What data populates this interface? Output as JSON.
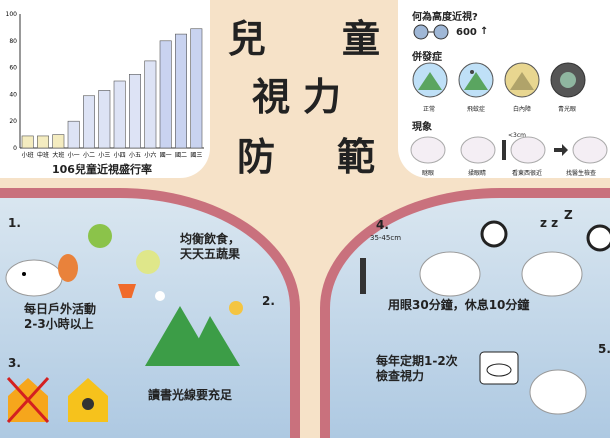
{
  "title": {
    "c1": "兒",
    "c2": "童",
    "c3": "視",
    "c4": "力",
    "c5": "防",
    "c6": "範"
  },
  "chart_data": {
    "type": "bar",
    "title": "106兒童近視盛行率",
    "categories": [
      "小班",
      "中班",
      "大班",
      "小一",
      "小二",
      "小三",
      "小四",
      "小五",
      "小六",
      "國一",
      "國二",
      "國三"
    ],
    "values": [
      9,
      9,
      10,
      20,
      39,
      43,
      50,
      55,
      65,
      80,
      85,
      89
    ],
    "yticks": [
      "0",
      "20",
      "40",
      "60",
      "80",
      "100"
    ],
    "ylim": [
      0,
      100
    ],
    "highlight_colors": [
      "#f4ecc0",
      "#dde3f5",
      "#c9d3f0"
    ]
  },
  "info": {
    "high_myopia_q": "何為高度近視?",
    "threshold": "600",
    "arrow": "↑",
    "complications": "併發症",
    "comp_items": [
      "正常",
      "飛蚊症",
      "白內障",
      "青光眼"
    ],
    "symptoms": "現象",
    "sym_items": [
      "瞇眼",
      "揉眼睛",
      "看東西很近",
      "找醫生檢查"
    ],
    "distance": "<3cm"
  },
  "tips": {
    "n1": "1.",
    "n2": "2.",
    "n3": "3.",
    "n4": "4.",
    "n5": "5.",
    "diet_1": "均衡飲食，",
    "diet_2": "天天五蔬果",
    "outdoor_1": "每日戶外活動",
    "outdoor_2": "2-3小時以上",
    "light": "讀書光線要充足",
    "distance": "35-45cm",
    "rest": "用眼30分鐘，休息10分鐘",
    "check_1": "每年定期1-2次",
    "check_2": "檢查視力",
    "zz": "z z",
    "z": "Z"
  }
}
